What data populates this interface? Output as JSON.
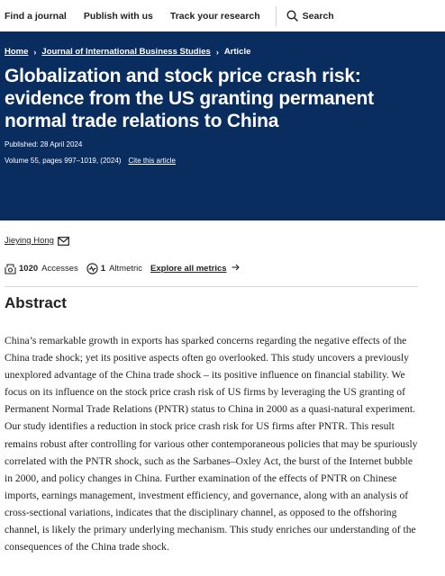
{
  "topnav": {
    "find_journal": "Find a journal",
    "publish": "Publish with us",
    "track": "Track your research",
    "search": "Search"
  },
  "breadcrumb": {
    "home": "Home",
    "journal": "Journal of International Business Studies",
    "article": "Article"
  },
  "article": {
    "title": "Globalization and stock price crash risk: evidence from the US granting permanent normal trade relations to China",
    "published": "Published: 28 April 2024",
    "volume": "Volume 55, pages 997–1019, (2024)",
    "cite": "Cite this article"
  },
  "author": {
    "name": "Jieying Hong"
  },
  "metrics": {
    "accesses_count": "1020",
    "accesses_label": "Accesses",
    "altmetric_count": "1",
    "altmetric_label": "Altmetric",
    "explore": "Explore all metrics"
  },
  "abstract": {
    "heading": "Abstract",
    "text": "China’s remarkable growth in exports has sparked concerns regarding the negative effects of the China trade shock; yet its positive aspects often go overlooked. This study uncovers a previously unexplored advantage of the China trade shock – its positive influence on financial stability. We focus on its influence on the stock price crash risk of US firms by leveraging the US granting of Permanent Normal Trade Relations (PNTR) status to China in 2000 as a quasi-natural experiment. Our study identifies a reduction in stock price crash risk for US firms after PNTR. This result remains robust after controlling for various other contemporaneous policies that may be spuriously correlated with the PNTR shock, such as the Sarbanes–Oxley Act, the burst of the Internet bubble in 2000, and policy changes in China. Further examination of the effects of PNTR on Chinese imports, earnings management, investment efficiency, and governance, along with an analysis of cross-sectional variations, indicates that the disciplinary channel, as opposed to the offshoring channel, is likely the primary underlying mechanism. This study enriches our understanding of the consequences of the China trade shock."
  },
  "colors": {
    "hero_background": "#0a2d5f",
    "text": "#222222"
  },
  "icons": {
    "search": "search-icon",
    "mail": "mail-icon",
    "accesses": "accesses-icon",
    "altmetric": "altmetric-icon",
    "arrow": "arrow-right-icon"
  }
}
